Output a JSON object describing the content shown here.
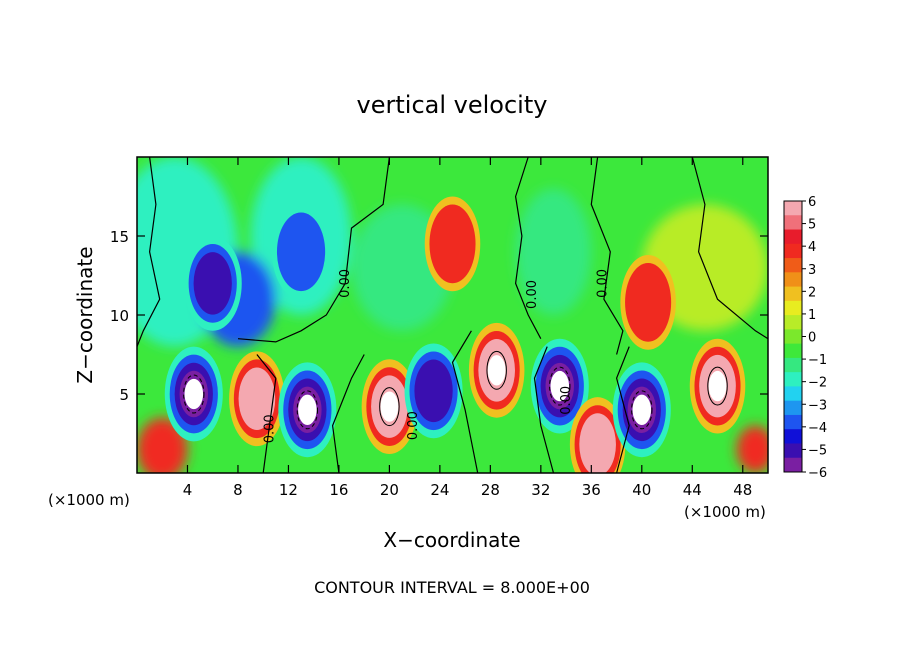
{
  "chart_data": {
    "type": "heatmap",
    "title": "vertical velocity",
    "xlabel": "X−coordinate",
    "ylabel": "Z−coordinate",
    "x_unit_left": "(×1000 m)",
    "x_unit_right": "(×1000 m)",
    "footer": "CONTOUR INTERVAL = 8.000E+00",
    "xlim": [
      0,
      50
    ],
    "ylim": [
      0,
      20
    ],
    "x_ticks": [
      4,
      8,
      12,
      16,
      20,
      24,
      28,
      32,
      36,
      40,
      44,
      48
    ],
    "x_tick_labels": [
      "4",
      "8",
      "12",
      "16",
      "20",
      "24",
      "28",
      "32",
      "36",
      "40",
      "44",
      "48"
    ],
    "y_ticks": [
      5,
      10,
      15
    ],
    "y_tick_labels": [
      "5",
      "10",
      "15"
    ],
    "contour_labels": [
      {
        "text": "0.00",
        "x": 16.8,
        "y": 12.0
      },
      {
        "text": "0.00",
        "x": 10.8,
        "y": 2.8
      },
      {
        "text": "0.00",
        "x": 22.2,
        "y": 3.0
      },
      {
        "text": "0.00",
        "x": 31.6,
        "y": 11.3
      },
      {
        "text": "0.00",
        "x": 37.2,
        "y": 12.0
      },
      {
        "text": "0.00",
        "x": 34.3,
        "y": 4.6
      }
    ],
    "colorbar": {
      "min": -6,
      "max": 6,
      "tick_values": [
        6,
        5,
        4,
        3,
        2,
        1,
        0,
        -1,
        -2,
        -3,
        -4,
        -5,
        -6
      ],
      "tick_labels": [
        "6",
        "5",
        "4",
        "3",
        "2",
        "1",
        "0",
        "−1",
        "−2",
        "−3",
        "−4",
        "−5",
        "−6"
      ],
      "colors": [
        "#7a1fa2",
        "#3a0fb0",
        "#1010d8",
        "#1e55f0",
        "#1e96f0",
        "#22d2f0",
        "#2ef0c0",
        "#35e880",
        "#3ee83a",
        "#7be82c",
        "#b8ec28",
        "#e8ec20",
        "#f0c020",
        "#f09018",
        "#f05c18",
        "#f02a20",
        "#e81c2c",
        "#f0707a",
        "#f4a8b0"
      ]
    },
    "features": [
      {
        "kind": "downdraft",
        "x": 4.5,
        "z": 5.0,
        "w": -7
      },
      {
        "kind": "updraft",
        "x": 9.5,
        "z": 4.7,
        "w": 5
      },
      {
        "kind": "downdraft",
        "x": 13.5,
        "z": 4.0,
        "w": -7
      },
      {
        "kind": "updraft",
        "x": 20.0,
        "z": 4.2,
        "w": 7
      },
      {
        "kind": "downdraft",
        "x": 23.5,
        "z": 5.2,
        "w": -5
      },
      {
        "kind": "updraft",
        "x": 28.5,
        "z": 6.5,
        "w": 7
      },
      {
        "kind": "updraft",
        "x": 25.0,
        "z": 14.5,
        "w": 3
      },
      {
        "kind": "downdraft",
        "x": 33.5,
        "z": 5.5,
        "w": -7
      },
      {
        "kind": "updraft",
        "x": 36.5,
        "z": 1.8,
        "w": 5
      },
      {
        "kind": "downdraft",
        "x": 40.0,
        "z": 4.0,
        "w": -7
      },
      {
        "kind": "updraft",
        "x": 46.0,
        "z": 5.5,
        "w": 7
      },
      {
        "kind": "downdraft",
        "x": 6.0,
        "z": 12.0,
        "w": -4
      },
      {
        "kind": "downdraft",
        "x": 13.0,
        "z": 14.0,
        "w": -3
      },
      {
        "kind": "updraft",
        "x": 40.5,
        "z": 10.8,
        "w": 3
      }
    ]
  }
}
